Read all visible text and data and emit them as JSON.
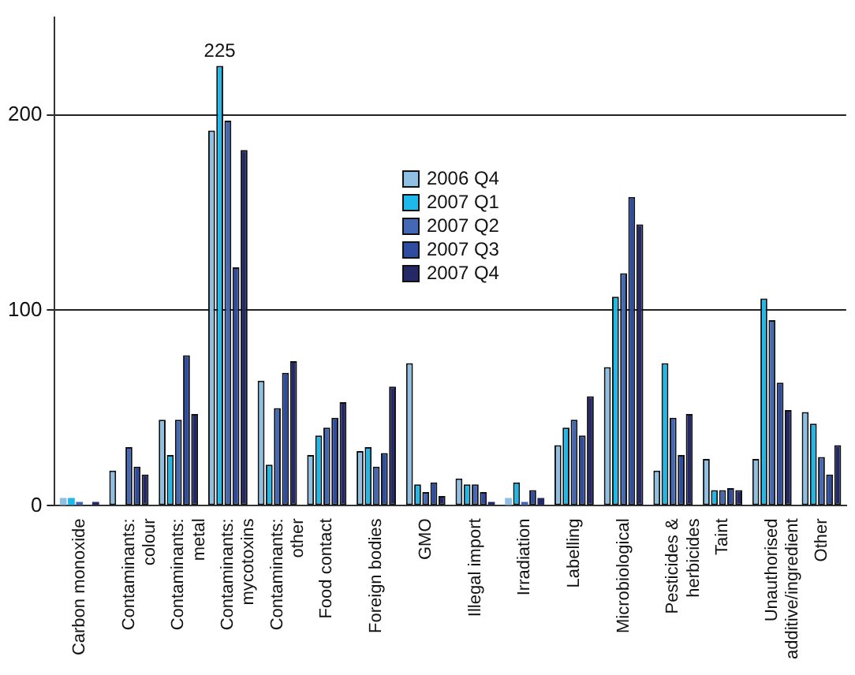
{
  "chart_data": {
    "type": "bar",
    "categories": [
      "Carbon monoxide",
      "Contaminants:\ncolour",
      "Contaminants:\nmetal",
      "Contaminants:\nmycotoxins",
      "Contaminants:\nother",
      "Food contact",
      "Foreign bodies",
      "GMO",
      "Illegal import",
      "Irradiation",
      "Labelling",
      "Microbiological",
      "Pesticides &\nherbicides",
      "Taint",
      "Unauthorised\nadditive/ingredient",
      "Other"
    ],
    "series": [
      {
        "name": "2006 Q4",
        "color": "#8fc0e4",
        "values": [
          4,
          18,
          44,
          192,
          64,
          26,
          28,
          73,
          14,
          4,
          31,
          71,
          18,
          24,
          24,
          48
        ]
      },
      {
        "name": "2007 Q1",
        "color": "#1fb8ea",
        "values": [
          4,
          0,
          26,
          225,
          21,
          36,
          30,
          11,
          11,
          12,
          40,
          107,
          73,
          8,
          106,
          42
        ],
        "value_labels": [
          null,
          null,
          null,
          "225",
          null,
          null,
          null,
          null,
          null,
          null,
          null,
          null,
          null,
          null,
          null,
          null
        ]
      },
      {
        "name": "2007 Q2",
        "color": "#4568b4",
        "values": [
          2,
          30,
          44,
          197,
          50,
          40,
          20,
          7,
          11,
          2,
          44,
          119,
          45,
          8,
          95,
          25
        ]
      },
      {
        "name": "2007 Q3",
        "color": "#2e4da0",
        "values": [
          0,
          20,
          77,
          122,
          68,
          45,
          27,
          12,
          7,
          8,
          36,
          158,
          26,
          9,
          63,
          16
        ]
      },
      {
        "name": "2007 Q4",
        "color": "#252866",
        "values": [
          2,
          16,
          47,
          182,
          74,
          53,
          61,
          5,
          2,
          4,
          56,
          144,
          47,
          8,
          49,
          31
        ]
      }
    ],
    "ylim": [
      0,
      250
    ],
    "yticks": [
      0,
      100,
      200
    ],
    "grid": "y",
    "legend": "top"
  }
}
